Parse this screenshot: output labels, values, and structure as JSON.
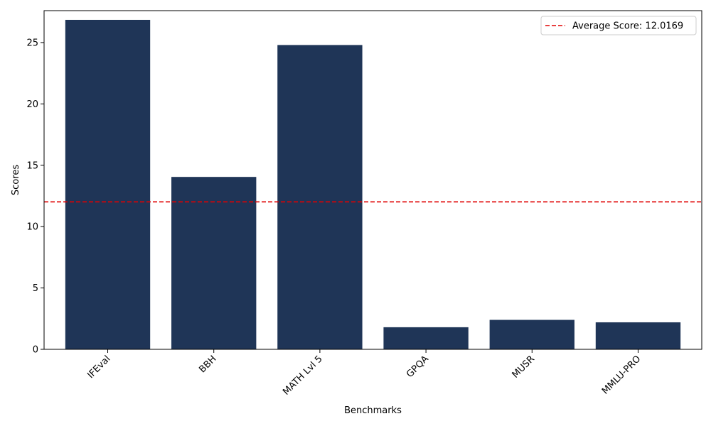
{
  "chart_data": {
    "type": "bar",
    "title": "",
    "xlabel": "Benchmarks",
    "ylabel": "Scores",
    "categories": [
      "IFEval",
      "BBH",
      "MATH Lvl 5",
      "GPQA",
      "MUSR",
      "MMLU-PRO"
    ],
    "values": [
      26.85,
      14.05,
      24.8,
      1.8,
      2.4,
      2.2
    ],
    "ylim": [
      0,
      27.6
    ],
    "yticks": [
      0,
      5,
      10,
      15,
      20,
      25
    ],
    "grid": false,
    "bar_color": "#1f3557",
    "average": {
      "value": 12.0169,
      "label": "Average Score: 12.0169",
      "color": "#e00000",
      "style": "dashed"
    },
    "legend": {
      "position": "top-right",
      "entries": [
        "Average Score: 12.0169"
      ]
    }
  }
}
